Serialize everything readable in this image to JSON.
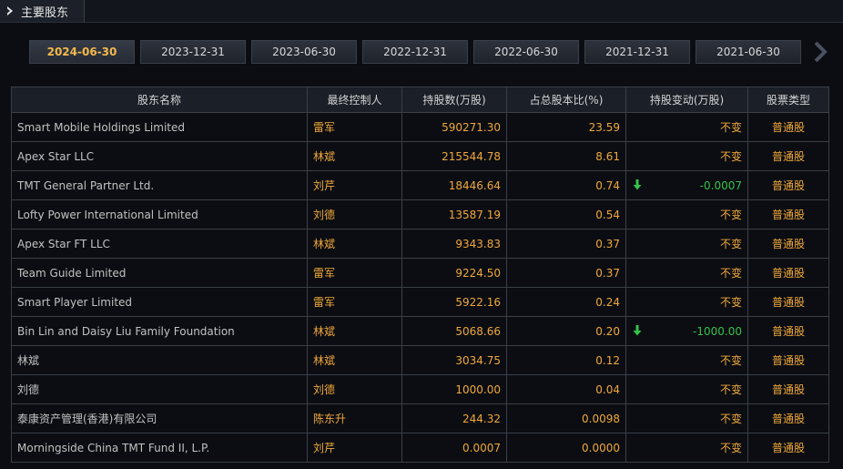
{
  "header": {
    "title": "主要股东"
  },
  "date_tabs": [
    "2024-06-30",
    "2023-12-31",
    "2023-06-30",
    "2022-12-31",
    "2022-06-30",
    "2021-12-31",
    "2021-06-30"
  ],
  "active_tab": 0,
  "columns": [
    "股东名称",
    "最终控制人",
    "持股数(万股)",
    "占总股本比(%)",
    "持股变动(万股)",
    "股票类型"
  ],
  "rows": [
    {
      "name": "Smart Mobile Holdings Limited",
      "controller": "雷军",
      "shares": "590271.30",
      "ratio": "23.59",
      "change": "不变",
      "trend": "none",
      "type": "普通股"
    },
    {
      "name": "Apex Star LLC",
      "controller": "林斌",
      "shares": "215544.78",
      "ratio": "8.61",
      "change": "不变",
      "trend": "none",
      "type": "普通股"
    },
    {
      "name": "TMT General Partner Ltd.",
      "controller": "刘芹",
      "shares": "18446.64",
      "ratio": "0.74",
      "change": "-0.0007",
      "trend": "down",
      "type": "普通股"
    },
    {
      "name": "Lofty Power International Limited",
      "controller": "刘德",
      "shares": "13587.19",
      "ratio": "0.54",
      "change": "不变",
      "trend": "none",
      "type": "普通股"
    },
    {
      "name": "Apex Star FT LLC",
      "controller": "林斌",
      "shares": "9343.83",
      "ratio": "0.37",
      "change": "不变",
      "trend": "none",
      "type": "普通股"
    },
    {
      "name": "Team Guide Limited",
      "controller": "雷军",
      "shares": "9224.50",
      "ratio": "0.37",
      "change": "不变",
      "trend": "none",
      "type": "普通股"
    },
    {
      "name": "Smart Player Limited",
      "controller": "雷军",
      "shares": "5922.16",
      "ratio": "0.24",
      "change": "不变",
      "trend": "none",
      "type": "普通股"
    },
    {
      "name": "Bin Lin and Daisy Liu Family Foundation",
      "controller": "林斌",
      "shares": "5068.66",
      "ratio": "0.20",
      "change": "-1000.00",
      "trend": "down",
      "type": "普通股"
    },
    {
      "name": "林斌",
      "controller": "林斌",
      "shares": "3034.75",
      "ratio": "0.12",
      "change": "不变",
      "trend": "none",
      "type": "普通股"
    },
    {
      "name": "刘德",
      "controller": "刘德",
      "shares": "1000.00",
      "ratio": "0.04",
      "change": "不变",
      "trend": "none",
      "type": "普通股"
    },
    {
      "name": "泰康资产管理(香港)有限公司",
      "controller": "陈东升",
      "shares": "244.32",
      "ratio": "0.0098",
      "change": "不变",
      "trend": "none",
      "type": "普通股"
    },
    {
      "name": "Morningside China TMT Fund II, L.P.",
      "controller": "刘芹",
      "shares": "0.0007",
      "ratio": "0.0000",
      "change": "不变",
      "trend": "none",
      "type": "普通股"
    }
  ],
  "colors": {
    "accent": "#f0a83a",
    "down": "#34c24a",
    "active_tab": "#f2b94d"
  },
  "icons": {
    "header": "chevron-right-icon",
    "next": "chevron-right-icon",
    "trend_down": "arrow-down-icon"
  }
}
